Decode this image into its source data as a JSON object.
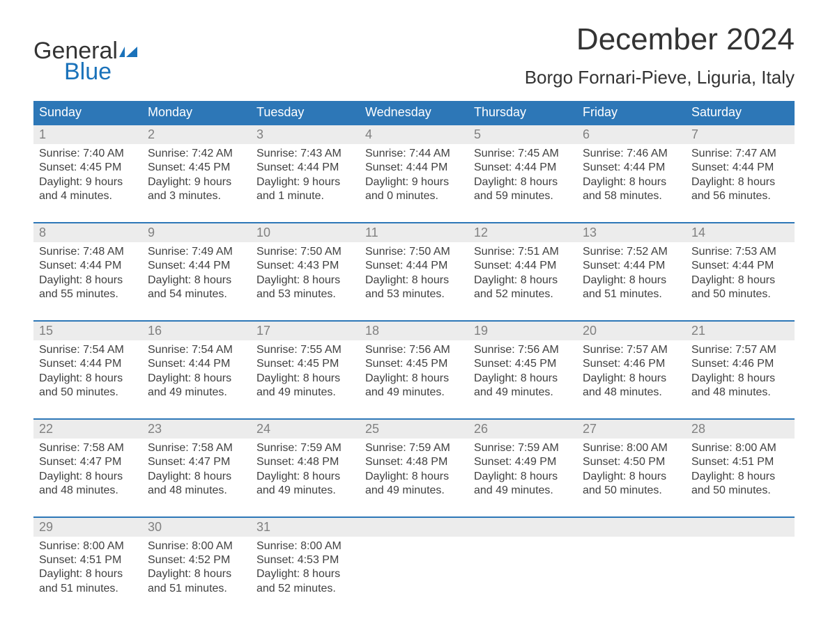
{
  "logo": {
    "word1": "General",
    "word2": "Blue",
    "color1": "#333333",
    "color2": "#1a72ba"
  },
  "title": "December 2024",
  "location": "Borgo Fornari-Pieve, Liguria, Italy",
  "colors": {
    "header_bg": "#2d77b7",
    "header_fg": "#ffffff",
    "row_border": "#2d77b7",
    "daynum_bg": "#ececec",
    "daynum_fg": "#808080",
    "body_fg": "#404040",
    "page_bg": "#ffffff"
  },
  "weekdays": [
    "Sunday",
    "Monday",
    "Tuesday",
    "Wednesday",
    "Thursday",
    "Friday",
    "Saturday"
  ],
  "weeks": [
    [
      {
        "n": "1",
        "sunrise": "7:40 AM",
        "sunset": "4:45 PM",
        "dl1": "Daylight: 9 hours",
        "dl2": "and 4 minutes."
      },
      {
        "n": "2",
        "sunrise": "7:42 AM",
        "sunset": "4:45 PM",
        "dl1": "Daylight: 9 hours",
        "dl2": "and 3 minutes."
      },
      {
        "n": "3",
        "sunrise": "7:43 AM",
        "sunset": "4:44 PM",
        "dl1": "Daylight: 9 hours",
        "dl2": "and 1 minute."
      },
      {
        "n": "4",
        "sunrise": "7:44 AM",
        "sunset": "4:44 PM",
        "dl1": "Daylight: 9 hours",
        "dl2": "and 0 minutes."
      },
      {
        "n": "5",
        "sunrise": "7:45 AM",
        "sunset": "4:44 PM",
        "dl1": "Daylight: 8 hours",
        "dl2": "and 59 minutes."
      },
      {
        "n": "6",
        "sunrise": "7:46 AM",
        "sunset": "4:44 PM",
        "dl1": "Daylight: 8 hours",
        "dl2": "and 58 minutes."
      },
      {
        "n": "7",
        "sunrise": "7:47 AM",
        "sunset": "4:44 PM",
        "dl1": "Daylight: 8 hours",
        "dl2": "and 56 minutes."
      }
    ],
    [
      {
        "n": "8",
        "sunrise": "7:48 AM",
        "sunset": "4:44 PM",
        "dl1": "Daylight: 8 hours",
        "dl2": "and 55 minutes."
      },
      {
        "n": "9",
        "sunrise": "7:49 AM",
        "sunset": "4:44 PM",
        "dl1": "Daylight: 8 hours",
        "dl2": "and 54 minutes."
      },
      {
        "n": "10",
        "sunrise": "7:50 AM",
        "sunset": "4:43 PM",
        "dl1": "Daylight: 8 hours",
        "dl2": "and 53 minutes."
      },
      {
        "n": "11",
        "sunrise": "7:50 AM",
        "sunset": "4:44 PM",
        "dl1": "Daylight: 8 hours",
        "dl2": "and 53 minutes."
      },
      {
        "n": "12",
        "sunrise": "7:51 AM",
        "sunset": "4:44 PM",
        "dl1": "Daylight: 8 hours",
        "dl2": "and 52 minutes."
      },
      {
        "n": "13",
        "sunrise": "7:52 AM",
        "sunset": "4:44 PM",
        "dl1": "Daylight: 8 hours",
        "dl2": "and 51 minutes."
      },
      {
        "n": "14",
        "sunrise": "7:53 AM",
        "sunset": "4:44 PM",
        "dl1": "Daylight: 8 hours",
        "dl2": "and 50 minutes."
      }
    ],
    [
      {
        "n": "15",
        "sunrise": "7:54 AM",
        "sunset": "4:44 PM",
        "dl1": "Daylight: 8 hours",
        "dl2": "and 50 minutes."
      },
      {
        "n": "16",
        "sunrise": "7:54 AM",
        "sunset": "4:44 PM",
        "dl1": "Daylight: 8 hours",
        "dl2": "and 49 minutes."
      },
      {
        "n": "17",
        "sunrise": "7:55 AM",
        "sunset": "4:45 PM",
        "dl1": "Daylight: 8 hours",
        "dl2": "and 49 minutes."
      },
      {
        "n": "18",
        "sunrise": "7:56 AM",
        "sunset": "4:45 PM",
        "dl1": "Daylight: 8 hours",
        "dl2": "and 49 minutes."
      },
      {
        "n": "19",
        "sunrise": "7:56 AM",
        "sunset": "4:45 PM",
        "dl1": "Daylight: 8 hours",
        "dl2": "and 49 minutes."
      },
      {
        "n": "20",
        "sunrise": "7:57 AM",
        "sunset": "4:46 PM",
        "dl1": "Daylight: 8 hours",
        "dl2": "and 48 minutes."
      },
      {
        "n": "21",
        "sunrise": "7:57 AM",
        "sunset": "4:46 PM",
        "dl1": "Daylight: 8 hours",
        "dl2": "and 48 minutes."
      }
    ],
    [
      {
        "n": "22",
        "sunrise": "7:58 AM",
        "sunset": "4:47 PM",
        "dl1": "Daylight: 8 hours",
        "dl2": "and 48 minutes."
      },
      {
        "n": "23",
        "sunrise": "7:58 AM",
        "sunset": "4:47 PM",
        "dl1": "Daylight: 8 hours",
        "dl2": "and 48 minutes."
      },
      {
        "n": "24",
        "sunrise": "7:59 AM",
        "sunset": "4:48 PM",
        "dl1": "Daylight: 8 hours",
        "dl2": "and 49 minutes."
      },
      {
        "n": "25",
        "sunrise": "7:59 AM",
        "sunset": "4:48 PM",
        "dl1": "Daylight: 8 hours",
        "dl2": "and 49 minutes."
      },
      {
        "n": "26",
        "sunrise": "7:59 AM",
        "sunset": "4:49 PM",
        "dl1": "Daylight: 8 hours",
        "dl2": "and 49 minutes."
      },
      {
        "n": "27",
        "sunrise": "8:00 AM",
        "sunset": "4:50 PM",
        "dl1": "Daylight: 8 hours",
        "dl2": "and 50 minutes."
      },
      {
        "n": "28",
        "sunrise": "8:00 AM",
        "sunset": "4:51 PM",
        "dl1": "Daylight: 8 hours",
        "dl2": "and 50 minutes."
      }
    ],
    [
      {
        "n": "29",
        "sunrise": "8:00 AM",
        "sunset": "4:51 PM",
        "dl1": "Daylight: 8 hours",
        "dl2": "and 51 minutes."
      },
      {
        "n": "30",
        "sunrise": "8:00 AM",
        "sunset": "4:52 PM",
        "dl1": "Daylight: 8 hours",
        "dl2": "and 51 minutes."
      },
      {
        "n": "31",
        "sunrise": "8:00 AM",
        "sunset": "4:53 PM",
        "dl1": "Daylight: 8 hours",
        "dl2": "and 52 minutes."
      },
      null,
      null,
      null,
      null
    ]
  ],
  "labels": {
    "sunrise": "Sunrise: ",
    "sunset": "Sunset: "
  }
}
